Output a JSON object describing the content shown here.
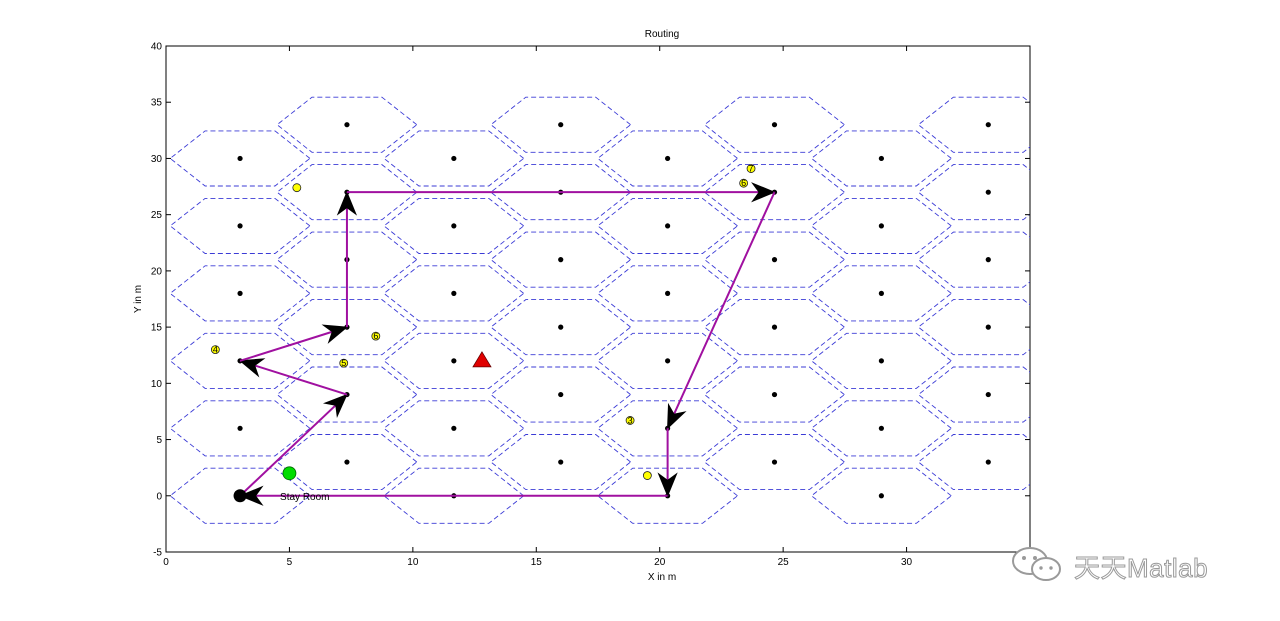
{
  "chart_data": {
    "type": "scatter",
    "title": "Routing",
    "xlabel": "X in m",
    "ylabel": "Y in m",
    "xlim": [
      0,
      35
    ],
    "ylim": [
      -5,
      40
    ],
    "xticks": [
      0,
      5,
      10,
      15,
      20,
      25,
      30
    ],
    "yticks": [
      -5,
      0,
      5,
      10,
      15,
      20,
      25,
      30,
      35,
      40
    ],
    "grid": false,
    "hex_cells": {
      "column_x": [
        3.0,
        7.33,
        11.66,
        15.99,
        20.32,
        24.65,
        28.98,
        33.31
      ],
      "even_column_y": [
        0,
        6,
        12,
        18,
        24,
        30
      ],
      "odd_column_y": [
        3,
        9,
        15,
        21,
        27,
        33
      ],
      "radius": 2.83,
      "edge_color": "#3b3bd6"
    },
    "route": {
      "color": "#a010a0",
      "points": [
        [
          3,
          0
        ],
        [
          7.33,
          9
        ],
        [
          3,
          12
        ],
        [
          7.33,
          15
        ],
        [
          7.33,
          27
        ],
        [
          24.65,
          27
        ],
        [
          20.32,
          6
        ],
        [
          20.32,
          0
        ],
        [
          3,
          0
        ]
      ]
    },
    "sensor_nodes": {
      "color": "#ffff00",
      "points": [
        [
          2,
          13,
          "4"
        ],
        [
          5.3,
          27.4,
          ""
        ],
        [
          7.2,
          11.8,
          "5"
        ],
        [
          8.5,
          14.2,
          "6"
        ],
        [
          18.8,
          6.7,
          "3"
        ],
        [
          19.5,
          1.8,
          ""
        ],
        [
          23.4,
          27.8,
          "6"
        ],
        [
          23.7,
          29.1,
          "7"
        ]
      ]
    },
    "sink_triangle": {
      "x": 12.8,
      "y": 12,
      "color": "#e00000"
    },
    "green_node": {
      "x": 5,
      "y": 2,
      "color": "#00dd00"
    },
    "start_node": {
      "x": 3,
      "y": 0,
      "label": "Stay Room"
    }
  },
  "watermark": {
    "text": "天天Matlab",
    "icon": "wechat-icon"
  }
}
